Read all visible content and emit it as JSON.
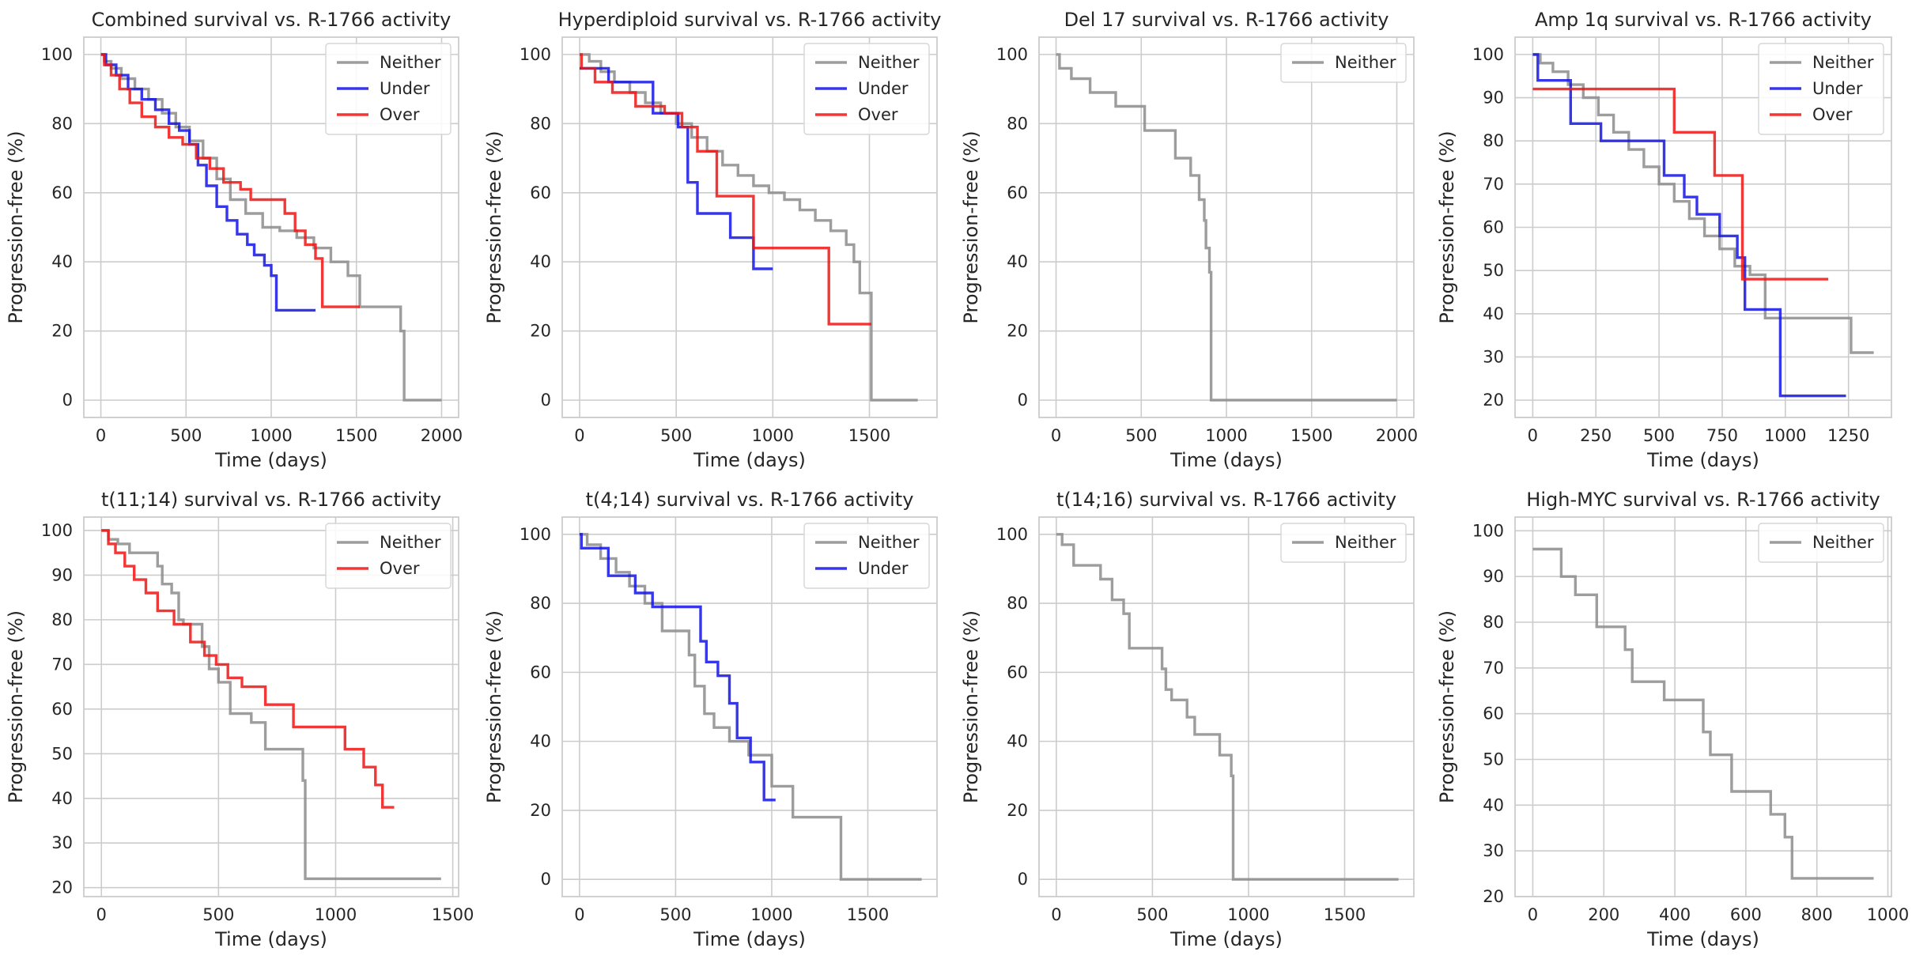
{
  "colors": {
    "Neither": "#8c8c8c",
    "Under": "#1414e6",
    "Over": "#f01414",
    "grid": "#cccccc",
    "frame": "#cccccc"
  },
  "chart_data": [
    {
      "type": "line",
      "title": "Combined survival vs. R-1766 activity",
      "xlabel": "Time (days)",
      "ylabel": "Progression-free (%)",
      "xlim": [
        -100,
        2100
      ],
      "ylim": [
        -5,
        105
      ],
      "xticks": [
        0,
        500,
        1000,
        1500,
        2000
      ],
      "yticks": [
        0,
        20,
        40,
        60,
        80,
        100
      ],
      "grid": true,
      "legend": "top-right",
      "series": [
        {
          "name": "Neither",
          "x": [
            0,
            20,
            60,
            120,
            200,
            280,
            360,
            440,
            520,
            600,
            680,
            760,
            850,
            950,
            1050,
            1150,
            1250,
            1350,
            1450,
            1520,
            1760,
            1780,
            2000
          ],
          "y": [
            100,
            98,
            96,
            93,
            90,
            87,
            83,
            79,
            75,
            70,
            64,
            58,
            54,
            50,
            49,
            47,
            44,
            40,
            36,
            27,
            20,
            0,
            0
          ]
        },
        {
          "name": "Under",
          "x": [
            0,
            30,
            90,
            160,
            240,
            320,
            400,
            460,
            520,
            570,
            620,
            680,
            740,
            800,
            860,
            900,
            960,
            1000,
            1030,
            1260
          ],
          "y": [
            100,
            97,
            94,
            90,
            87,
            84,
            80,
            78,
            74,
            68,
            62,
            56,
            52,
            48,
            45,
            42,
            39,
            36,
            26,
            26
          ]
        },
        {
          "name": "Over",
          "x": [
            0,
            20,
            60,
            110,
            170,
            240,
            320,
            400,
            480,
            560,
            640,
            720,
            820,
            880,
            1000,
            1080,
            1140,
            1200,
            1260,
            1300,
            1520
          ],
          "y": [
            100,
            97,
            94,
            90,
            86,
            82,
            79,
            76,
            74,
            70,
            67,
            63,
            61,
            58,
            58,
            54,
            49,
            45,
            41,
            27,
            27
          ]
        }
      ]
    },
    {
      "type": "line",
      "title": "Hyperdiploid survival vs. R-1766 activity",
      "xlabel": "Time (days)",
      "ylabel": "Progression-free (%)",
      "xlim": [
        -90,
        1850
      ],
      "ylim": [
        -5,
        105
      ],
      "xticks": [
        0,
        500,
        1000,
        1500
      ],
      "yticks": [
        0,
        20,
        40,
        60,
        80,
        100
      ],
      "grid": true,
      "legend": "top-right",
      "series": [
        {
          "name": "Neither",
          "x": [
            0,
            50,
            110,
            180,
            260,
            340,
            420,
            500,
            580,
            660,
            740,
            820,
            900,
            980,
            1060,
            1140,
            1220,
            1300,
            1380,
            1420,
            1450,
            1500,
            1510,
            1750
          ],
          "y": [
            100,
            98,
            95,
            92,
            89,
            86,
            83,
            80,
            76,
            72,
            68,
            65,
            62,
            60,
            58,
            55,
            52,
            49,
            45,
            40,
            31,
            31,
            0,
            0
          ]
        },
        {
          "name": "Under",
          "x": [
            0,
            150,
            380,
            510,
            560,
            610,
            780,
            900,
            1000
          ],
          "y": [
            96,
            92,
            83,
            79,
            63,
            54,
            47,
            38,
            38
          ]
        },
        {
          "name": "Over",
          "x": [
            0,
            10,
            80,
            170,
            290,
            440,
            530,
            610,
            710,
            900,
            1290,
            1510
          ],
          "y": [
            100,
            96,
            92,
            89,
            85,
            83,
            79,
            72,
            59,
            44,
            22,
            22
          ]
        }
      ]
    },
    {
      "type": "line",
      "title": "Del 17 survival vs. R-1766 activity",
      "xlabel": "Time (days)",
      "ylabel": "Progression-free (%)",
      "xlim": [
        -100,
        2100
      ],
      "ylim": [
        -5,
        105
      ],
      "xticks": [
        0,
        500,
        1000,
        1500,
        2000
      ],
      "yticks": [
        0,
        20,
        40,
        60,
        80,
        100
      ],
      "grid": true,
      "legend": "top-right",
      "series": [
        {
          "name": "Neither",
          "x": [
            0,
            20,
            90,
            200,
            350,
            520,
            590,
            700,
            790,
            840,
            870,
            880,
            900,
            910,
            2000
          ],
          "y": [
            100,
            96,
            93,
            89,
            85,
            78,
            78,
            70,
            65,
            58,
            52,
            44,
            37,
            0,
            0
          ]
        }
      ]
    },
    {
      "type": "line",
      "title": "Amp 1q survival vs. R-1766 activity",
      "xlabel": "Time (days)",
      "ylabel": "Progression-free (%)",
      "xlim": [
        -70,
        1420
      ],
      "ylim": [
        16,
        104
      ],
      "xticks": [
        0,
        250,
        500,
        750,
        1000,
        1250
      ],
      "yticks": [
        20,
        30,
        40,
        50,
        60,
        70,
        80,
        90,
        100
      ],
      "grid": true,
      "legend": "top-right",
      "series": [
        {
          "name": "Neither",
          "x": [
            0,
            30,
            80,
            140,
            200,
            260,
            320,
            380,
            440,
            500,
            560,
            620,
            680,
            740,
            800,
            860,
            920,
            980,
            1250,
            1260,
            1350
          ],
          "y": [
            100,
            98,
            96,
            93,
            90,
            86,
            82,
            78,
            74,
            70,
            66,
            62,
            58,
            55,
            51,
            49,
            39,
            39,
            39,
            31,
            31
          ]
        },
        {
          "name": "Under",
          "x": [
            0,
            20,
            150,
            270,
            490,
            520,
            600,
            650,
            740,
            810,
            840,
            980,
            1240
          ],
          "y": [
            100,
            94,
            84,
            80,
            80,
            72,
            67,
            63,
            58,
            53,
            41,
            21,
            21
          ]
        },
        {
          "name": "Over",
          "x": [
            0,
            560,
            720,
            830,
            1170
          ],
          "y": [
            92,
            82,
            72,
            48,
            48
          ]
        }
      ]
    },
    {
      "type": "line",
      "title": "t(11;14) survival vs. R-1766 activity",
      "xlabel": "Time (days)",
      "ylabel": "Progression-free (%)",
      "xlim": [
        -75,
        1525
      ],
      "ylim": [
        18,
        103
      ],
      "xticks": [
        0,
        500,
        1000,
        1500
      ],
      "yticks": [
        20,
        30,
        40,
        50,
        60,
        70,
        80,
        90,
        100
      ],
      "grid": true,
      "legend": "top-right",
      "series": [
        {
          "name": "Neither",
          "x": [
            0,
            30,
            70,
            120,
            240,
            260,
            300,
            330,
            350,
            430,
            460,
            500,
            550,
            640,
            700,
            760,
            860,
            870,
            1450
          ],
          "y": [
            100,
            98,
            97,
            95,
            92,
            88,
            86,
            80,
            79,
            74,
            69,
            66,
            59,
            57,
            51,
            51,
            44,
            22,
            22
          ]
        },
        {
          "name": "Over",
          "x": [
            0,
            30,
            60,
            100,
            140,
            190,
            240,
            310,
            380,
            440,
            490,
            540,
            600,
            700,
            820,
            1040,
            1120,
            1170,
            1200,
            1250
          ],
          "y": [
            100,
            97,
            95,
            92,
            89,
            86,
            82,
            79,
            75,
            72,
            70,
            67,
            65,
            61,
            56,
            51,
            47,
            43,
            38,
            38
          ]
        }
      ]
    },
    {
      "type": "line",
      "title": "t(4;14) survival vs. R-1766 activity",
      "xlabel": "Time (days)",
      "ylabel": "Progression-free (%)",
      "xlim": [
        -90,
        1860
      ],
      "ylim": [
        -5,
        105
      ],
      "xticks": [
        0,
        500,
        1000,
        1500
      ],
      "yticks": [
        0,
        20,
        40,
        60,
        80,
        100
      ],
      "grid": true,
      "legend": "top-right",
      "series": [
        {
          "name": "Neither",
          "x": [
            0,
            40,
            110,
            190,
            260,
            340,
            430,
            540,
            570,
            600,
            650,
            700,
            780,
            880,
            1000,
            1100,
            1110,
            1350,
            1360,
            1780
          ],
          "y": [
            100,
            97,
            93,
            89,
            85,
            80,
            72,
            72,
            65,
            56,
            48,
            44,
            40,
            36,
            27,
            27,
            18,
            18,
            0,
            0
          ]
        },
        {
          "name": "Under",
          "x": [
            0,
            10,
            150,
            290,
            380,
            630,
            660,
            720,
            780,
            820,
            890,
            960,
            1020
          ],
          "y": [
            100,
            96,
            88,
            83,
            79,
            69,
            63,
            59,
            51,
            41,
            34,
            23,
            23
          ]
        }
      ]
    },
    {
      "type": "line",
      "title": "t(14;16) survival vs. R-1766 activity",
      "xlabel": "Time (days)",
      "ylabel": "Progression-free (%)",
      "xlim": [
        -90,
        1860
      ],
      "ylim": [
        -5,
        105
      ],
      "xticks": [
        0,
        500,
        1000,
        1500
      ],
      "yticks": [
        0,
        20,
        40,
        60,
        80,
        100
      ],
      "grid": true,
      "legend": "top-right",
      "series": [
        {
          "name": "Neither",
          "x": [
            0,
            30,
            90,
            230,
            290,
            350,
            380,
            550,
            570,
            600,
            680,
            720,
            850,
            910,
            920,
            1780
          ],
          "y": [
            100,
            97,
            91,
            87,
            81,
            77,
            67,
            61,
            55,
            52,
            47,
            42,
            36,
            30,
            0,
            0
          ]
        }
      ]
    },
    {
      "type": "line",
      "title": "High-MYC survival vs. R-1766 activity",
      "xlabel": "Time (days)",
      "ylabel": "Progression-free (%)",
      "xlim": [
        -50,
        1010
      ],
      "ylim": [
        20,
        103
      ],
      "xticks": [
        0,
        200,
        400,
        600,
        800,
        1000
      ],
      "yticks": [
        20,
        30,
        40,
        50,
        60,
        70,
        80,
        90,
        100
      ],
      "grid": true,
      "legend": "top-right",
      "series": [
        {
          "name": "Neither",
          "x": [
            0,
            80,
            120,
            180,
            260,
            280,
            370,
            480,
            500,
            560,
            670,
            710,
            730,
            960
          ],
          "y": [
            96,
            90,
            86,
            79,
            74,
            67,
            63,
            56,
            51,
            43,
            38,
            33,
            24,
            24
          ]
        }
      ]
    }
  ]
}
